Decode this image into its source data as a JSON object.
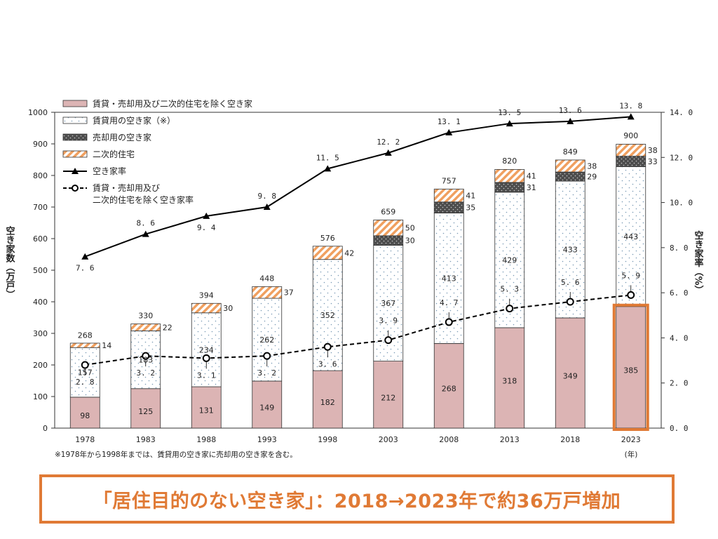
{
  "chart_data": {
    "type": "bar",
    "categories": [
      "1978",
      "1983",
      "1988",
      "1993",
      "1998",
      "2003",
      "2008",
      "2013",
      "2018",
      "2023"
    ],
    "series": [
      {
        "name": "賃貸・売却用及び二次的住宅を除く空き家",
        "kind": "bar",
        "color": "#dcb4b4",
        "pattern": "solid",
        "values": [
          98,
          125,
          131,
          149,
          182,
          212,
          268,
          318,
          349,
          385
        ]
      },
      {
        "name": "賃貸用の空き家（※）",
        "kind": "bar",
        "color": "#ffffff",
        "pattern": "dots",
        "values": [
          157,
          183,
          234,
          262,
          352,
          367,
          413,
          429,
          433,
          443
        ]
      },
      {
        "name": "売却用の空き家",
        "kind": "bar",
        "color": "#4d4d4d",
        "pattern": "dark-dots",
        "values": [
          null,
          null,
          null,
          null,
          null,
          30,
          35,
          31,
          29,
          33
        ]
      },
      {
        "name": "二次的住宅",
        "kind": "bar",
        "color": "#f0a060",
        "pattern": "hatch",
        "values": [
          14,
          22,
          30,
          37,
          42,
          50,
          41,
          41,
          38,
          38
        ]
      },
      {
        "name": "空き家率",
        "kind": "line",
        "axis": "right",
        "color": "#000000",
        "marker": "triangle",
        "values": [
          7.6,
          8.6,
          9.4,
          9.8,
          11.5,
          12.2,
          13.1,
          13.5,
          13.6,
          13.8
        ],
        "labels": [
          "7. 6",
          "8. 6",
          "9. 4",
          "9. 8",
          "11. 5",
          "12. 2",
          "13. 1",
          "13. 5",
          "13. 6",
          "13. 8"
        ]
      },
      {
        "name": "賃貸・売却用及び二次的住宅を除く空き家率",
        "legend_lines": [
          "賃貸・売却用及び",
          "二次的住宅を除く空き家率"
        ],
        "kind": "line",
        "axis": "right",
        "color": "#000000",
        "dashed": true,
        "marker": "circle",
        "values": [
          2.8,
          3.2,
          3.1,
          3.2,
          3.6,
          3.9,
          4.7,
          5.3,
          5.6,
          5.9
        ],
        "labels": [
          "2. 8",
          "3. 2",
          "3. 1",
          "3. 2",
          "3. 6",
          "3. 9",
          "4. 7",
          "5. 3",
          "5. 6",
          "5. 9"
        ]
      }
    ],
    "totals": [
      268,
      330,
      394,
      448,
      576,
      659,
      757,
      820,
      849,
      900
    ],
    "ylabel": "空き家数（万戸）",
    "y2label": "空き家率（%）",
    "xunit": "(年)",
    "ylim": [
      0,
      1000
    ],
    "y2lim": [
      0,
      14
    ],
    "yticks": [
      "0",
      "100",
      "200",
      "300",
      "400",
      "500",
      "600",
      "700",
      "800",
      "900",
      "1000"
    ],
    "y2ticks": [
      "0. 0",
      "2. 0",
      "4. 0",
      "6. 0",
      "8. 0",
      "10. 0",
      "12. 0",
      "14. 0"
    ],
    "grid": false,
    "legend_position": "top-left",
    "highlight": {
      "category": "2023",
      "color": "#e07a35"
    },
    "footnote": "※1978年から1998年までは、賃貸用の空き家に売却用の空き家を含む。"
  },
  "callout": {
    "text": "「居住目的のない空き家」：2018→2023年で約36万戸増加",
    "color": "#e07a35"
  }
}
